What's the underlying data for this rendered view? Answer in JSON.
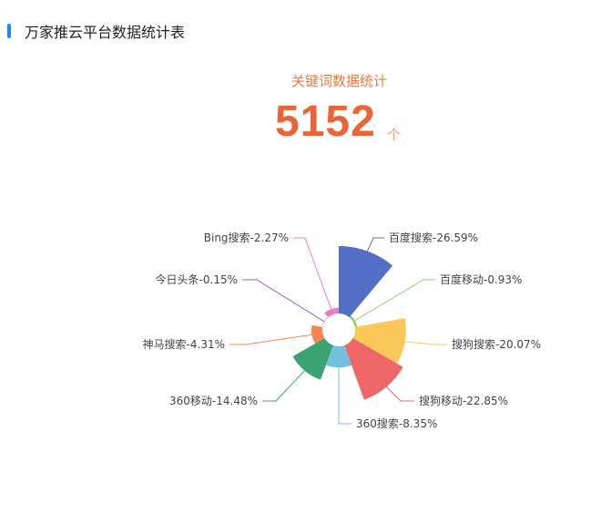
{
  "header": {
    "title": "万家推云平台数据统计表"
  },
  "summary": {
    "label": "关键词数据统计",
    "value": "5152",
    "unit": "个"
  },
  "chart_data": {
    "type": "pie",
    "rose": true,
    "categories": [
      "百度搜索",
      "百度移动",
      "搜狗搜索",
      "搜狗移动",
      "360搜索",
      "360移动",
      "神马搜索",
      "今日头条",
      "Bing搜索"
    ],
    "values": [
      26.59,
      0.93,
      20.07,
      22.85,
      8.35,
      14.48,
      4.31,
      0.15,
      2.27
    ],
    "labels": [
      "百度搜索-26.59%",
      "百度移动-0.93%",
      "搜狗搜索-20.07%",
      "搜狗移动-22.85%",
      "360搜索-8.35%",
      "360移动-14.48%",
      "神马搜索-4.31%",
      "今日头条-0.15%",
      "Bing搜索-2.27%"
    ],
    "colors": [
      "#5470c6",
      "#91cc75",
      "#fac858",
      "#ee6666",
      "#73c0de",
      "#3ba272",
      "#fc8452",
      "#9a60b4",
      "#ea7ccc"
    ]
  }
}
